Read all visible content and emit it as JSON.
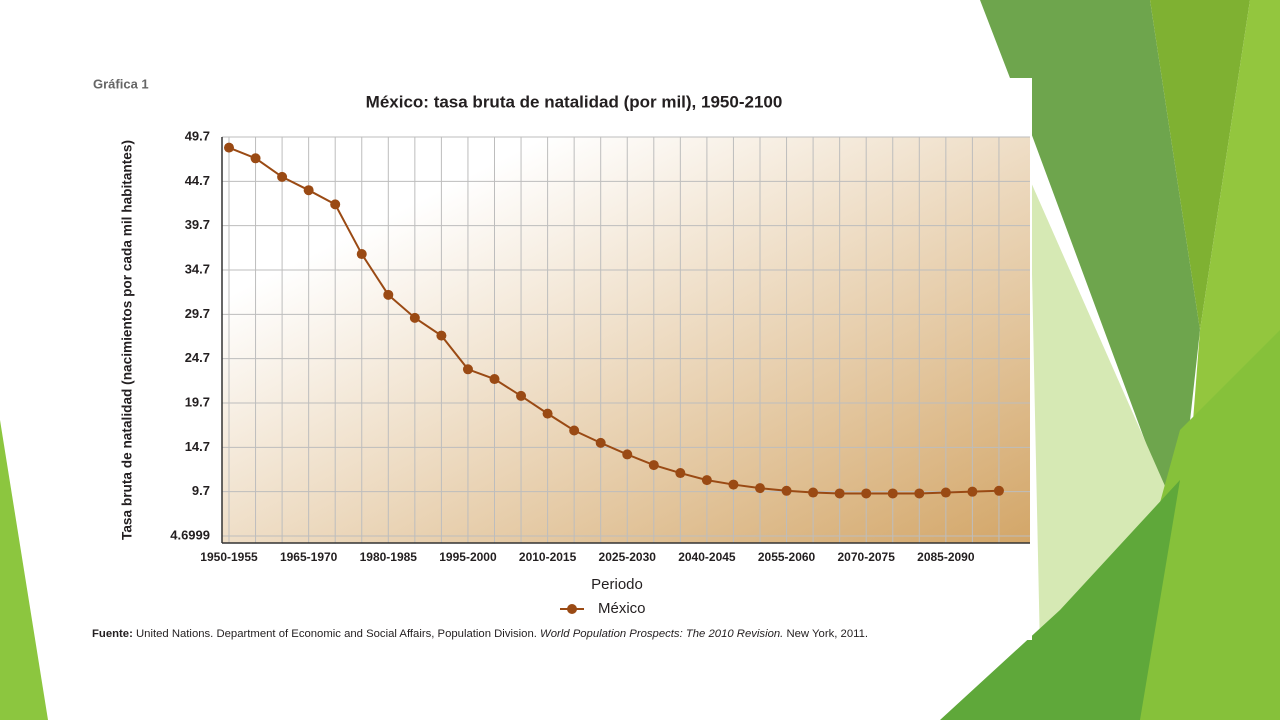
{
  "chart_data": {
    "type": "line",
    "label": "Gráfica 1",
    "title": "México: tasa bruta de natalidad (por mil), 1950-2100",
    "y_label": "Tasa bruta de natalidad (nacimientos por cada mil habitantes)",
    "x_label": "Periodo",
    "categories": [
      "1950-1955",
      null,
      null,
      "1965-1970",
      null,
      null,
      "1980-1985",
      null,
      null,
      "1995-2000",
      null,
      null,
      "2010-2015",
      null,
      null,
      "2025-2030",
      null,
      null,
      "2040-2045",
      null,
      null,
      "2055-2060",
      null,
      null,
      "2070-2075",
      null,
      null,
      "2085-2090",
      null,
      null
    ],
    "series": [
      {
        "name": "México",
        "color": "#9a4a14",
        "values": [
          48.5,
          47.3,
          45.2,
          43.7,
          42.1,
          36.5,
          31.9,
          29.3,
          27.3,
          23.5,
          22.4,
          20.5,
          18.5,
          16.6,
          15.2,
          13.9,
          12.7,
          11.8,
          11.0,
          10.5,
          10.1,
          9.8,
          9.6,
          9.5,
          9.5,
          9.5,
          9.5,
          9.6,
          9.7,
          9.8
        ]
      }
    ],
    "ylim": [
      4.6999,
      49.7
    ],
    "yticks": [
      4.6999,
      9.7,
      14.7,
      19.7,
      24.7,
      29.7,
      34.7,
      39.7,
      44.7,
      49.7
    ],
    "grid": true,
    "source": {
      "label": "Fuente:",
      "text": "United Nations. Department of Economic and Social Affairs, Population Division.",
      "publication": "World Population Prospects: The 2010 Revision.",
      "place": "New York, 2011."
    }
  }
}
